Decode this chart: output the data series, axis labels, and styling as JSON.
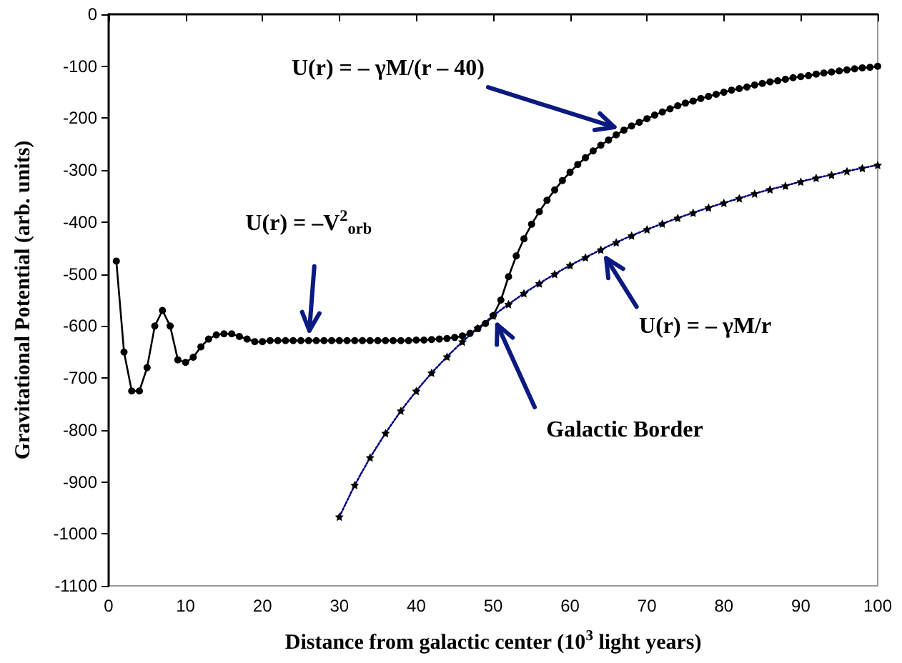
{
  "chart_data": {
    "type": "line",
    "xlabel": "Distance from galactic center (10$^{3}$ light years)",
    "ylabel": "Gravitational Potential (arb. units)",
    "xlim": [
      0,
      100
    ],
    "xticks": [
      0,
      10,
      20,
      30,
      40,
      50,
      60,
      70,
      80,
      90,
      100
    ],
    "ylim": [
      -1100,
      0
    ],
    "yticks": [
      -1100,
      -1000,
      -900,
      -800,
      -700,
      -600,
      -500,
      -400,
      -300,
      -200,
      -100,
      0
    ],
    "grid": false,
    "series": [
      {
        "color": "#000000",
        "marker": "circle",
        "line_style": "solid",
        "x": [
          1,
          2,
          3,
          4,
          5,
          6,
          7,
          8,
          9,
          10,
          11,
          12,
          13,
          14,
          15,
          16,
          17,
          18,
          19,
          20,
          21,
          22,
          23,
          24,
          25,
          26,
          27,
          28,
          29,
          30,
          31,
          32,
          33,
          34,
          35,
          36,
          37,
          38,
          39,
          40,
          41,
          42,
          43,
          44,
          45,
          46,
          47,
          48,
          49,
          50,
          51,
          52,
          53,
          54,
          55,
          56,
          57,
          58,
          59,
          60,
          61,
          62,
          63,
          64,
          65,
          66,
          67,
          68,
          69,
          70,
          71,
          72,
          73,
          74,
          75,
          76,
          77,
          78,
          79,
          80,
          81,
          82,
          83,
          84,
          85,
          86,
          87,
          88,
          89,
          90,
          91,
          92,
          93,
          94,
          95,
          96,
          97,
          98,
          99,
          100
        ],
        "values": [
          -475,
          -650,
          -725,
          -725,
          -680,
          -600,
          -570,
          -600,
          -665,
          -670,
          -660,
          -640,
          -625,
          -617,
          -615,
          -615,
          -620,
          -625,
          -630,
          -630,
          -628,
          -628,
          -628,
          -628,
          -628,
          -628,
          -628,
          -628,
          -628,
          -628,
          -628,
          -628,
          -628,
          -628,
          -628,
          -628,
          -628,
          -628,
          -628,
          -627,
          -627,
          -626,
          -625,
          -624,
          -622,
          -619,
          -614,
          -605,
          -595,
          -580,
          -550,
          -505,
          -465,
          -432,
          -404,
          -380,
          -358,
          -338,
          -320,
          -304,
          -289,
          -276,
          -263,
          -252,
          -242,
          -232,
          -223,
          -215,
          -208,
          -201,
          -194,
          -188,
          -182,
          -176,
          -171,
          -167,
          -162,
          -158,
          -154,
          -150,
          -146,
          -143,
          -140,
          -136,
          -133,
          -130,
          -128,
          -125,
          -122,
          -120,
          -118,
          -115,
          -113,
          -111,
          -109,
          -107,
          -105,
          -103,
          -102,
          -100
        ]
      },
      {
        "color": "#000080",
        "marker": "star",
        "line_style": "dotted",
        "x": [
          30,
          32,
          34,
          36,
          38,
          40,
          42,
          44,
          46,
          48,
          50,
          52,
          54,
          56,
          58,
          60,
          62,
          64,
          66,
          68,
          70,
          72,
          74,
          76,
          78,
          80,
          82,
          84,
          86,
          88,
          90,
          92,
          94,
          96,
          98,
          100
        ],
        "values": [
          -967,
          -906,
          -853,
          -806,
          -763,
          -725,
          -690,
          -659,
          -630,
          -604,
          -580,
          -558,
          -537,
          -518,
          -500,
          -483,
          -468,
          -453,
          -439,
          -426,
          -414,
          -403,
          -392,
          -382,
          -372,
          -363,
          -354,
          -345,
          -337,
          -330,
          -322,
          -315,
          -309,
          -302,
          -296,
          -290
        ]
      }
    ],
    "annotations": [
      {
        "text": "U(r) = – γM/(r – 40)",
        "x": 67,
        "y": -223
      },
      {
        "text": "U(r) = –V$^{2}$$_{orb}$",
        "x": 26,
        "y": -628
      },
      {
        "text": "U(r) = – γM/r",
        "x": 64,
        "y": -453
      },
      {
        "text": "Galactic Border",
        "x": 50,
        "y": -580
      }
    ]
  }
}
